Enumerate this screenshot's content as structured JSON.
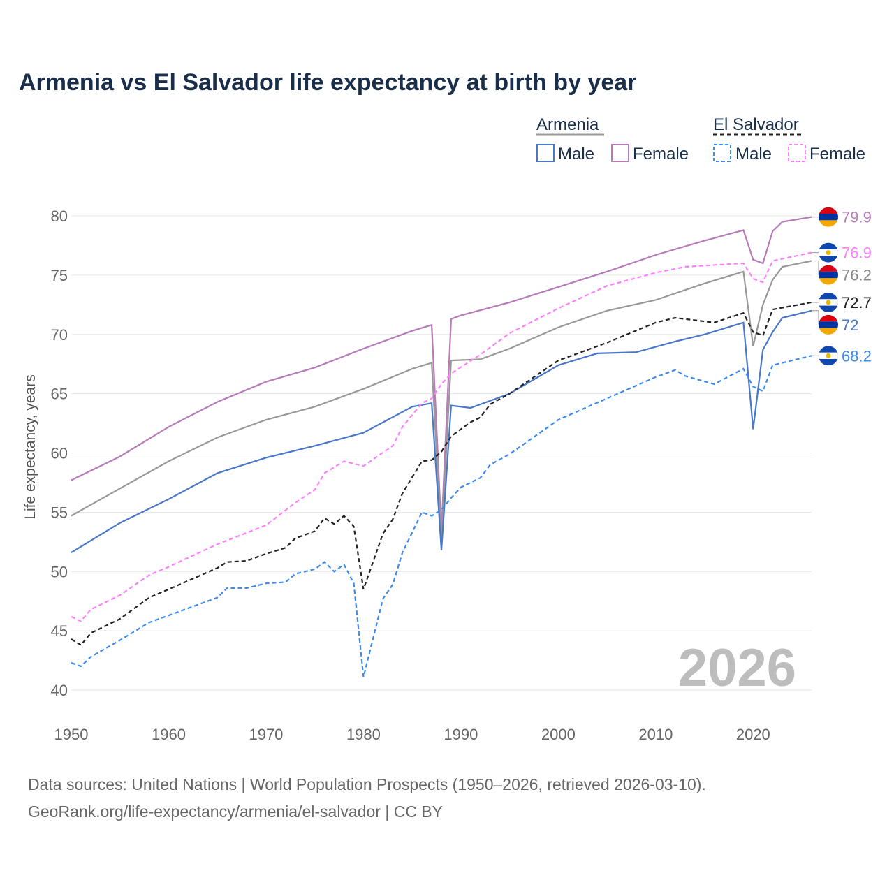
{
  "chart_data": {
    "type": "line",
    "title": "Armenia vs El Salvador life expectancy at birth by year",
    "xlabel": "",
    "ylabel": "Life expectancy, years",
    "xlim": [
      1950,
      2026
    ],
    "ylim": [
      40,
      80
    ],
    "xticks": [
      "1950",
      "1960",
      "1970",
      "1980",
      "1990",
      "2000",
      "2010",
      "2020"
    ],
    "yticks": [
      "40",
      "45",
      "50",
      "55",
      "60",
      "65",
      "70",
      "75",
      "80"
    ],
    "grid": true,
    "year_watermark": "2026",
    "legend": {
      "placement": "top-right",
      "groups": [
        {
          "name": "Armenia",
          "items": [
            "Male",
            "Female"
          ]
        },
        {
          "name": "El Salvador",
          "items": [
            "Male",
            "Female"
          ]
        }
      ]
    },
    "series": [
      {
        "name": "Armenia Female",
        "color": "#b77bb8",
        "dash": false,
        "flag": "armenia",
        "end_label": "79.9",
        "points": [
          [
            1950,
            57.7
          ],
          [
            1955,
            59.7
          ],
          [
            1960,
            62.2
          ],
          [
            1965,
            64.3
          ],
          [
            1970,
            66.0
          ],
          [
            1975,
            67.2
          ],
          [
            1980,
            68.8
          ],
          [
            1985,
            70.3
          ],
          [
            1987,
            70.8
          ],
          [
            1988,
            53.4
          ],
          [
            1989,
            71.3
          ],
          [
            1990,
            71.6
          ],
          [
            1995,
            72.7
          ],
          [
            2000,
            74.0
          ],
          [
            2005,
            75.3
          ],
          [
            2010,
            76.7
          ],
          [
            2015,
            77.9
          ],
          [
            2019,
            78.8
          ],
          [
            2020,
            76.3
          ],
          [
            2021,
            76.0
          ],
          [
            2022,
            78.7
          ],
          [
            2023,
            79.5
          ],
          [
            2026,
            79.9
          ]
        ]
      },
      {
        "name": "Armenia",
        "color": "#999999",
        "dash": false,
        "flag": "armenia",
        "end_label": "76.2",
        "points": [
          [
            1950,
            54.7
          ],
          [
            1955,
            57.0
          ],
          [
            1960,
            59.3
          ],
          [
            1965,
            61.3
          ],
          [
            1970,
            62.8
          ],
          [
            1975,
            63.9
          ],
          [
            1980,
            65.4
          ],
          [
            1985,
            67.1
          ],
          [
            1987,
            67.6
          ],
          [
            1988,
            52.5
          ],
          [
            1989,
            67.8
          ],
          [
            1992,
            67.9
          ],
          [
            1995,
            68.8
          ],
          [
            2000,
            70.6
          ],
          [
            2005,
            72.0
          ],
          [
            2010,
            72.9
          ],
          [
            2015,
            74.3
          ],
          [
            2019,
            75.3
          ],
          [
            2020,
            69.0
          ],
          [
            2021,
            72.5
          ],
          [
            2022,
            74.6
          ],
          [
            2023,
            75.7
          ],
          [
            2026,
            76.2
          ]
        ]
      },
      {
        "name": "Armenia Male",
        "color": "#4a78c8",
        "dash": false,
        "flag": "armenia",
        "end_label": "72",
        "points": [
          [
            1950,
            51.6
          ],
          [
            1955,
            54.1
          ],
          [
            1960,
            56.1
          ],
          [
            1965,
            58.3
          ],
          [
            1970,
            59.6
          ],
          [
            1975,
            60.6
          ],
          [
            1980,
            61.7
          ],
          [
            1985,
            63.9
          ],
          [
            1987,
            64.2
          ],
          [
            1988,
            51.8
          ],
          [
            1989,
            64.0
          ],
          [
            1991,
            63.8
          ],
          [
            1995,
            65.0
          ],
          [
            2000,
            67.4
          ],
          [
            2004,
            68.4
          ],
          [
            2008,
            68.5
          ],
          [
            2012,
            69.4
          ],
          [
            2015,
            70.0
          ],
          [
            2019,
            71.0
          ],
          [
            2020,
            62.0
          ],
          [
            2021,
            68.7
          ],
          [
            2022,
            70.2
          ],
          [
            2023,
            71.4
          ],
          [
            2026,
            72.0
          ]
        ]
      },
      {
        "name": "El Salvador Female",
        "color": "#ff80ff",
        "dash": true,
        "flag": "el-salvador",
        "end_label": "76.9",
        "points": [
          [
            1950,
            46.2
          ],
          [
            1951,
            45.8
          ],
          [
            1952,
            46.8
          ],
          [
            1955,
            48.0
          ],
          [
            1958,
            49.7
          ],
          [
            1960,
            50.4
          ],
          [
            1965,
            52.3
          ],
          [
            1970,
            53.9
          ],
          [
            1973,
            55.8
          ],
          [
            1975,
            56.9
          ],
          [
            1976,
            58.3
          ],
          [
            1978,
            59.3
          ],
          [
            1980,
            58.9
          ],
          [
            1983,
            60.6
          ],
          [
            1984,
            62.2
          ],
          [
            1986,
            64.2
          ],
          [
            1987,
            64.6
          ],
          [
            1988,
            65.8
          ],
          [
            1989,
            66.7
          ],
          [
            1992,
            68.3
          ],
          [
            1995,
            70.1
          ],
          [
            2000,
            72.2
          ],
          [
            2005,
            74.1
          ],
          [
            2010,
            75.2
          ],
          [
            2013,
            75.7
          ],
          [
            2019,
            76.0
          ],
          [
            2020,
            74.7
          ],
          [
            2021,
            74.4
          ],
          [
            2022,
            76.2
          ],
          [
            2026,
            76.9
          ]
        ]
      },
      {
        "name": "El Salvador",
        "color": "#222222",
        "dash": true,
        "flag": "el-salvador",
        "end_label": "72.7",
        "points": [
          [
            1950,
            44.3
          ],
          [
            1951,
            43.8
          ],
          [
            1952,
            44.8
          ],
          [
            1955,
            46.0
          ],
          [
            1958,
            47.8
          ],
          [
            1960,
            48.5
          ],
          [
            1965,
            50.3
          ],
          [
            1966,
            50.8
          ],
          [
            1968,
            50.9
          ],
          [
            1970,
            51.5
          ],
          [
            1972,
            52.0
          ],
          [
            1973,
            52.8
          ],
          [
            1975,
            53.4
          ],
          [
            1976,
            54.5
          ],
          [
            1977,
            54.0
          ],
          [
            1978,
            54.7
          ],
          [
            1979,
            53.8
          ],
          [
            1980,
            48.5
          ],
          [
            1982,
            53.2
          ],
          [
            1983,
            54.4
          ],
          [
            1984,
            56.6
          ],
          [
            1986,
            59.3
          ],
          [
            1987,
            59.4
          ],
          [
            1988,
            60.1
          ],
          [
            1989,
            61.4
          ],
          [
            1991,
            62.6
          ],
          [
            1992,
            63.0
          ],
          [
            1993,
            64.1
          ],
          [
            1995,
            65.0
          ],
          [
            2000,
            67.8
          ],
          [
            2005,
            69.3
          ],
          [
            2010,
            71.0
          ],
          [
            2012,
            71.4
          ],
          [
            2016,
            71.0
          ],
          [
            2019,
            71.8
          ],
          [
            2020,
            70.2
          ],
          [
            2021,
            69.9
          ],
          [
            2022,
            72.1
          ],
          [
            2026,
            72.7
          ]
        ]
      },
      {
        "name": "El Salvador Male",
        "color": "#3d8bf0",
        "dash": true,
        "flag": "el-salvador",
        "end_label": "68.2",
        "points": [
          [
            1950,
            42.3
          ],
          [
            1951,
            42.0
          ],
          [
            1952,
            42.8
          ],
          [
            1955,
            44.2
          ],
          [
            1958,
            45.7
          ],
          [
            1960,
            46.3
          ],
          [
            1965,
            47.8
          ],
          [
            1966,
            48.6
          ],
          [
            1968,
            48.6
          ],
          [
            1970,
            49.0
          ],
          [
            1972,
            49.1
          ],
          [
            1973,
            49.8
          ],
          [
            1975,
            50.2
          ],
          [
            1976,
            50.8
          ],
          [
            1977,
            50.0
          ],
          [
            1978,
            50.6
          ],
          [
            1979,
            49.0
          ],
          [
            1980,
            41.1
          ],
          [
            1982,
            47.7
          ],
          [
            1983,
            48.9
          ],
          [
            1984,
            51.6
          ],
          [
            1986,
            55.0
          ],
          [
            1987,
            54.7
          ],
          [
            1988,
            55.2
          ],
          [
            1989,
            56.2
          ],
          [
            1990,
            57.1
          ],
          [
            1992,
            57.9
          ],
          [
            1993,
            59.0
          ],
          [
            1995,
            59.9
          ],
          [
            2000,
            62.8
          ],
          [
            2005,
            64.6
          ],
          [
            2010,
            66.4
          ],
          [
            2012,
            67.0
          ],
          [
            2013,
            66.5
          ],
          [
            2016,
            65.8
          ],
          [
            2019,
            67.1
          ],
          [
            2020,
            65.6
          ],
          [
            2021,
            65.2
          ],
          [
            2022,
            67.4
          ],
          [
            2026,
            68.2
          ]
        ]
      }
    ],
    "source_lines": [
      "Data sources: United Nations | World Population Prospects (1950–2026, retrieved 2026-03-10).",
      "GeoRank.org/life-expectancy/armenia/el-salvador | CC BY"
    ]
  }
}
